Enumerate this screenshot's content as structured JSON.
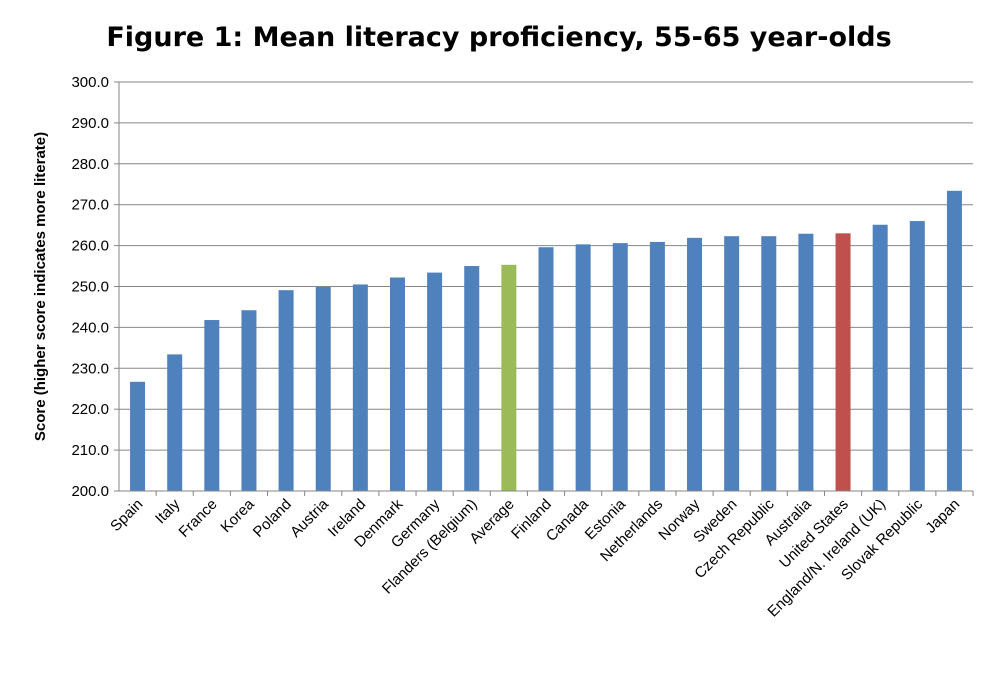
{
  "chart_data": {
    "type": "bar",
    "title": "Figure 1: Mean literacy proficiency, 55-65 year-olds",
    "xlabel": "",
    "ylabel": "Score (higher score indicates more literate)",
    "ylim": [
      200,
      300
    ],
    "yticks": [
      "200.0",
      "210.0",
      "220.0",
      "230.0",
      "240.0",
      "250.0",
      "260.0",
      "270.0",
      "280.0",
      "290.0",
      "300.0"
    ],
    "grid": true,
    "categories": [
      "Spain",
      "Italy",
      "France",
      "Korea",
      "Poland",
      "Austria",
      "Ireland",
      "Denmark",
      "Germany",
      "Flanders (Belgium)",
      "Average",
      "Finland",
      "Canada",
      "Estonia",
      "Netherlands",
      "Norway",
      "Sweden",
      "Czech Republic",
      "Australia",
      "United States",
      "England/N. Ireland (UK)",
      "Slovak Republic",
      "Japan"
    ],
    "values": [
      226.7,
      233.4,
      241.8,
      244.2,
      249.1,
      249.9,
      250.5,
      252.2,
      253.4,
      255.0,
      255.3,
      259.6,
      260.3,
      260.6,
      260.9,
      261.9,
      262.3,
      262.3,
      262.9,
      263.0,
      265.1,
      266.0,
      273.4
    ],
    "highlights": {
      "Average": "green",
      "United States": "red"
    },
    "colors": {
      "default": "#4f81bd",
      "green": "#9bbb59",
      "red": "#c0504d",
      "grid": "#868686",
      "axis": "#868686"
    }
  }
}
